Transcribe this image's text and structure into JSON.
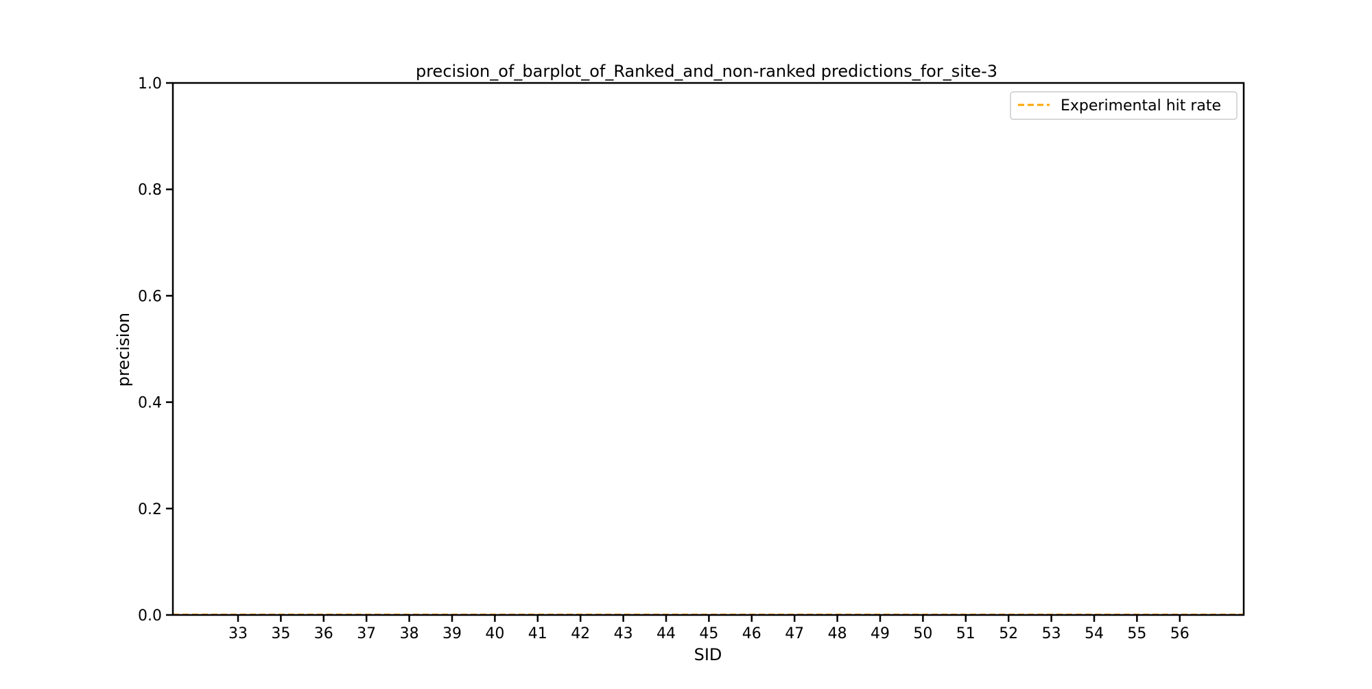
{
  "chart_data": {
    "type": "bar",
    "title": "precision_of_barplot_of_Ranked_and_non-ranked predictions_for_site-3",
    "xlabel": "SID",
    "ylabel": "precision",
    "categories": [
      "33",
      "35",
      "36",
      "37",
      "38",
      "39",
      "40",
      "41",
      "42",
      "43",
      "44",
      "45",
      "46",
      "47",
      "48",
      "49",
      "50",
      "51",
      "52",
      "53",
      "54",
      "55",
      "56"
    ],
    "series": [
      {
        "name": "",
        "values": [
          0,
          0,
          0,
          0,
          0,
          0,
          0,
          0,
          0,
          0,
          0,
          0,
          0,
          0,
          0,
          0,
          0,
          0,
          0,
          0,
          0,
          0,
          0
        ]
      }
    ],
    "reference_lines": [
      {
        "name": "Experimental hit rate",
        "y": 0.0,
        "style": "dashed",
        "color": "#ffa500"
      }
    ],
    "ylim": [
      0.0,
      1.0
    ],
    "yticks": [
      "0.0",
      "0.2",
      "0.4",
      "0.6",
      "0.8",
      "1.0"
    ],
    "grid": false,
    "legend_position": "top-right"
  }
}
